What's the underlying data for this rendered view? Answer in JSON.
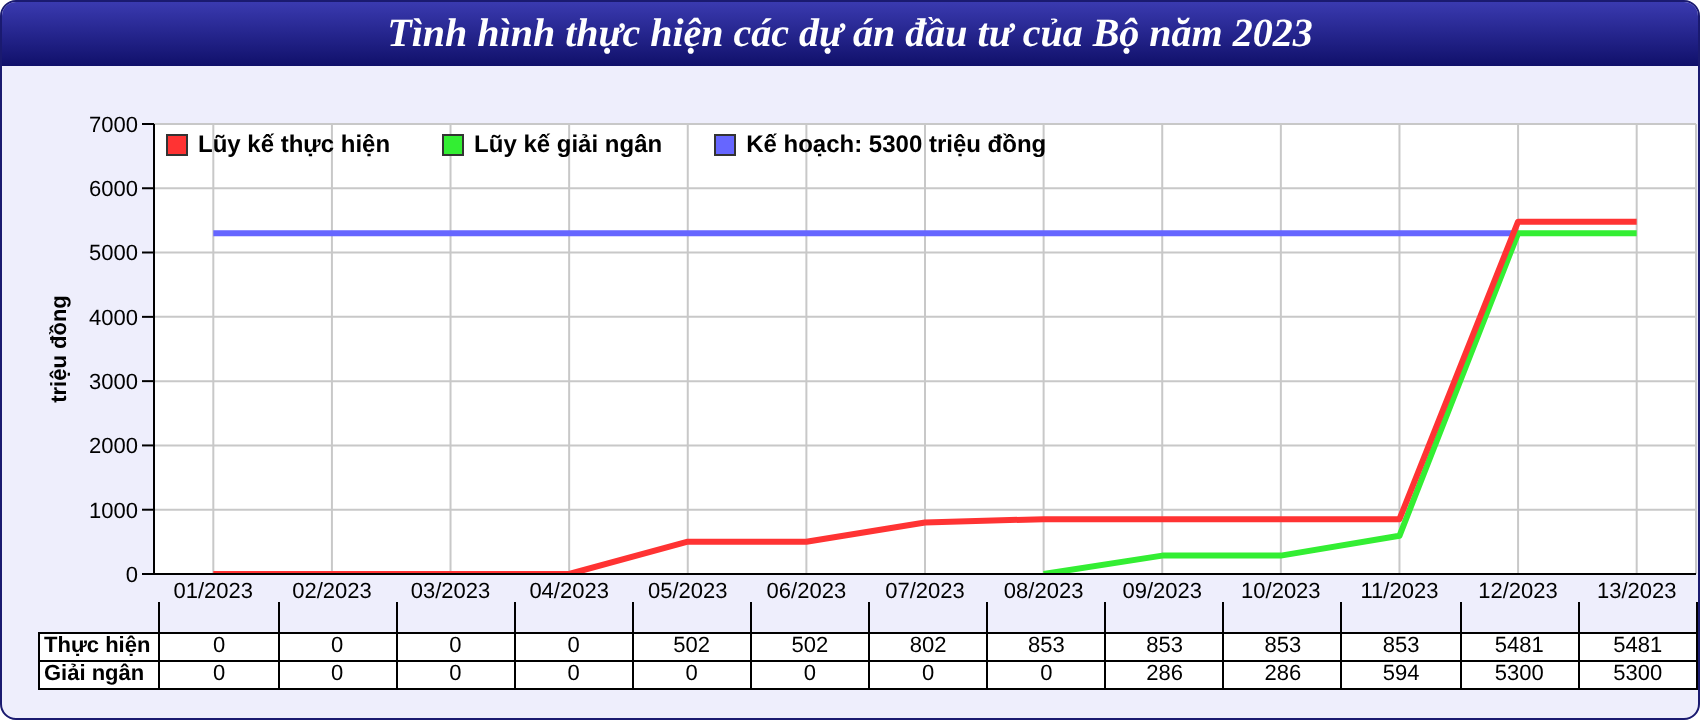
{
  "chart_data": {
    "type": "line",
    "title": "Tình hình thực hiện các dự án đầu tư của Bộ năm 2023",
    "ylabel": "triệu đồng",
    "categories": [
      "01/2023",
      "02/2023",
      "03/2023",
      "04/2023",
      "05/2023",
      "06/2023",
      "07/2023",
      "08/2023",
      "09/2023",
      "10/2023",
      "11/2023",
      "12/2023",
      "13/2023"
    ],
    "series": [
      {
        "name": "Kế hoạch: 5300 triệu đồng",
        "color": "#6666ff",
        "values": [
          5300,
          5300,
          5300,
          5300,
          5300,
          5300,
          5300,
          5300,
          5300,
          5300,
          5300,
          5300,
          null
        ]
      },
      {
        "name": "Lũy kế giải ngân",
        "color": "#33ee33",
        "values": [
          null,
          null,
          null,
          null,
          null,
          null,
          null,
          0,
          286,
          286,
          594,
          5300,
          5300
        ],
        "value_labels": [
          "0",
          "0",
          "0",
          "0",
          "0",
          "0",
          "0",
          "0",
          "286",
          "286",
          "594",
          "5300",
          "5300"
        ]
      },
      {
        "name": "Lũy kế thực hiện",
        "color": "#ff3333",
        "values": [
          0,
          0,
          0,
          0,
          502,
          502,
          802,
          853,
          853,
          853,
          853,
          5481,
          5481
        ],
        "value_labels": [
          "0",
          "0",
          "0",
          "0",
          "502",
          "502",
          "802",
          "853",
          "853",
          "853",
          "853",
          "5481",
          "5481"
        ]
      }
    ],
    "annotations": [
      "Giải ngân",
      "Thực hiện"
    ],
    "ylim": [
      0,
      7000
    ],
    "yticks": [
      0,
      1000,
      2000,
      3000,
      4000,
      5000,
      6000,
      7000
    ],
    "grid": true,
    "legend": "top left",
    "marker": "none",
    "line_style": "solid"
  }
}
